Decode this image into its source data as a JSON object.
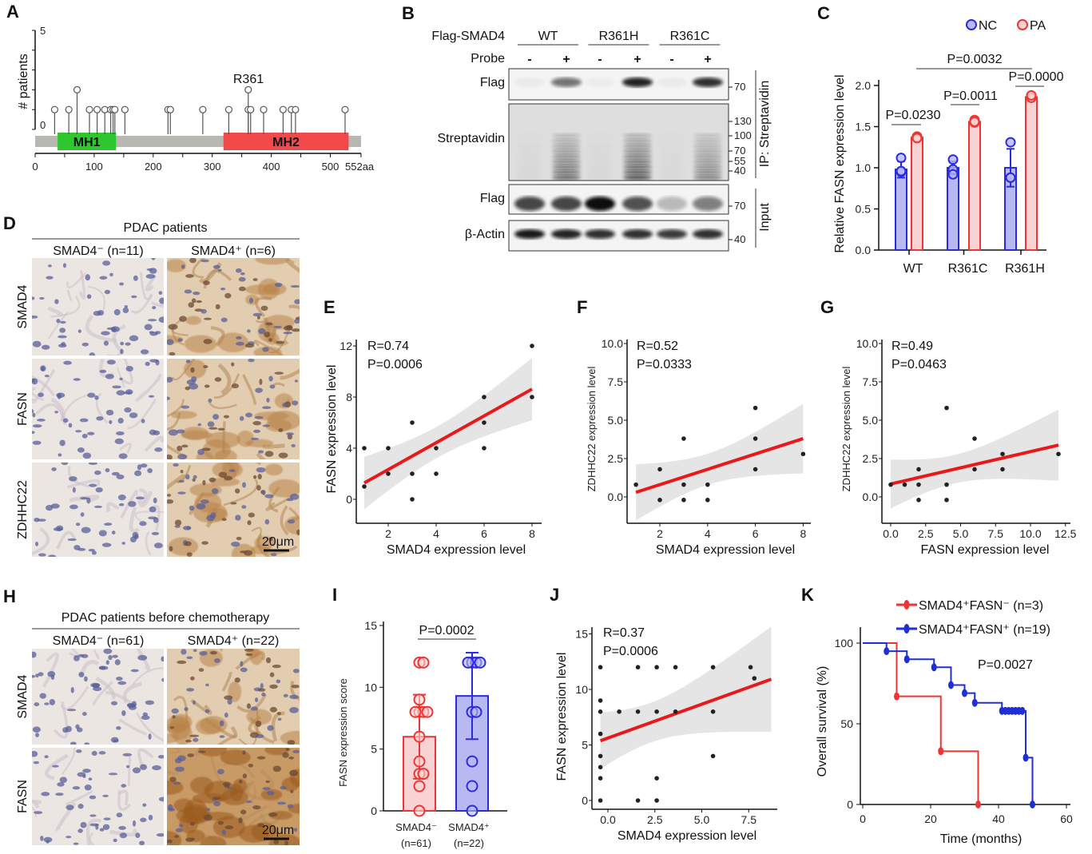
{
  "panel_labels": [
    "A",
    "B",
    "C",
    "D",
    "E",
    "F",
    "G",
    "H",
    "I",
    "J",
    "K"
  ],
  "panel_b": {
    "construct_label": "Flag-SMAD4",
    "probe_label": "Probe",
    "groups": [
      "WT",
      "R361H",
      "R361C"
    ],
    "probe": [
      "-",
      "+",
      "-",
      "+",
      "-",
      "+"
    ],
    "blots": [
      {
        "label": "Flag",
        "markers": [
          "70"
        ],
        "intensity": [
          0.04,
          0.55,
          0.03,
          0.9,
          0.04,
          0.85
        ]
      },
      {
        "label": "Streptavidin",
        "markers": [
          "130",
          "100",
          "70",
          "55",
          "40"
        ],
        "intensity": [
          0.04,
          0.7,
          0.04,
          0.85,
          0.03,
          0.55
        ]
      },
      {
        "label": "Flag",
        "markers": [
          "70"
        ],
        "intensity": [
          0.75,
          0.75,
          1.0,
          0.7,
          0.25,
          0.5
        ]
      },
      {
        "label": "β-Actin",
        "markers": [
          "40"
        ],
        "intensity": [
          0.95,
          0.9,
          0.85,
          0.85,
          0.8,
          0.85
        ]
      }
    ],
    "side_labels": [
      "IP: Streptavidin",
      "Input"
    ]
  },
  "panel_d": {
    "title": "PDAC patients",
    "columns": [
      "SMAD4⁻ (n=11)",
      "SMAD4⁺ (n=6)"
    ],
    "rows": [
      "SMAD4",
      "FASN",
      "ZDHHC22"
    ],
    "scale_bar": "20μm"
  },
  "panel_h": {
    "title": "PDAC  patients before chemotherapy",
    "columns": [
      "SMAD4⁻ (n=61)",
      "SMAD4⁺ (n=22)"
    ],
    "rows": [
      "SMAD4",
      "FASN"
    ],
    "scale_bar": "20μm"
  },
  "chart_data": [
    {
      "panel": "A",
      "type": "lollipop",
      "ylabel": "# patients",
      "yticks": [
        "0",
        "5"
      ],
      "ylim": [
        0,
        5
      ],
      "xticks": [
        "0",
        "100",
        "200",
        "300",
        "400",
        "500",
        "552aa"
      ],
      "xlim": [
        0,
        552
      ],
      "domains": [
        {
          "name": "MH1",
          "start": 38,
          "end": 137,
          "color": "#2ec82e"
        },
        {
          "name": "MH2",
          "start": 319,
          "end": 531,
          "color": "#f24a4a"
        }
      ],
      "mutations": [
        [
          33,
          1
        ],
        [
          57,
          1
        ],
        [
          71,
          2
        ],
        [
          92,
          1
        ],
        [
          105,
          1
        ],
        [
          118,
          1
        ],
        [
          128,
          1
        ],
        [
          132,
          1
        ],
        [
          135,
          1
        ],
        [
          152,
          1
        ],
        [
          225,
          1
        ],
        [
          229,
          1
        ],
        [
          284,
          1
        ],
        [
          328,
          1
        ],
        [
          361,
          2
        ],
        [
          361,
          1
        ],
        [
          365,
          1
        ],
        [
          387,
          1
        ],
        [
          420,
          1
        ],
        [
          434,
          1
        ],
        [
          441,
          1
        ],
        [
          525,
          1
        ]
      ],
      "annotation": "R361"
    },
    {
      "panel": "C",
      "type": "bar",
      "ylabel": "Relative FASN expression level",
      "categories": [
        "WT",
        "R361C",
        "R361H"
      ],
      "yticks": [
        "0.0",
        "0.5",
        "1.0",
        "1.5",
        "2.0"
      ],
      "ylim": [
        0,
        2
      ],
      "series": [
        {
          "name": "NC",
          "color": "#2a2ae0",
          "fill": "#b9b9f2",
          "values": [
            0.98,
            1.0,
            1.0
          ],
          "sd": [
            0.1,
            0.08,
            0.23
          ],
          "points": [
            [
              1.12,
              0.95,
              0.96
            ],
            [
              1.1,
              0.98,
              0.92
            ],
            [
              1.31,
              0.88,
              0.88
            ]
          ]
        },
        {
          "name": "PA",
          "color": "#ee3535",
          "fill": "#f9d3d3",
          "values": [
            1.37,
            1.56,
            1.86
          ],
          "sd": [
            0.02,
            0.03,
            0.02
          ],
          "points": [
            [
              1.38,
              1.37,
              1.36
            ],
            [
              1.58,
              1.55,
              1.56
            ],
            [
              1.87,
              1.85,
              1.88
            ]
          ]
        }
      ],
      "comparisons": [
        {
          "text": "P=0.0230",
          "from": [
            0,
            "NC"
          ],
          "to": [
            0,
            "PA"
          ]
        },
        {
          "text": "P=0.0011",
          "from": [
            1,
            "NC"
          ],
          "to": [
            1,
            "PA"
          ]
        },
        {
          "text": "P=0.0000",
          "from": [
            2,
            "NC"
          ],
          "to": [
            2,
            "PA"
          ]
        },
        {
          "text": "P=0.0032",
          "from": [
            0,
            "PA"
          ],
          "to": [
            2,
            "PA"
          ]
        }
      ]
    },
    {
      "panel": "E",
      "type": "scatter",
      "xlabel": "SMAD4 expression level",
      "ylabel": "FASN expression level",
      "xticks": [
        2,
        4,
        6,
        8
      ],
      "yticks": [
        0,
        4,
        8,
        12
      ],
      "points": [
        [
          1,
          4
        ],
        [
          1,
          1
        ],
        [
          2,
          4
        ],
        [
          2,
          2
        ],
        [
          3,
          6
        ],
        [
          3,
          2
        ],
        [
          3,
          0
        ],
        [
          4,
          4
        ],
        [
          4,
          2
        ],
        [
          6,
          8
        ],
        [
          6,
          6
        ],
        [
          6,
          4
        ],
        [
          8,
          12
        ],
        [
          8,
          8
        ]
      ],
      "annotations": [
        "R=0.74",
        "P=0.0006"
      ],
      "line_color": "#e8191a"
    },
    {
      "panel": "F",
      "type": "scatter",
      "xlabel": "SMAD4 expression level",
      "ylabel": "ZDHHC22 expression level",
      "xticks": [
        2,
        4,
        6,
        8
      ],
      "yticks": [
        "0.0",
        "2.5",
        "5.0",
        "7.5",
        "10.0"
      ],
      "points": [
        [
          1,
          0.8
        ],
        [
          2,
          1.8
        ],
        [
          2,
          -0.2
        ],
        [
          3,
          3.8
        ],
        [
          3,
          0.8
        ],
        [
          3,
          -0.2
        ],
        [
          4,
          0.8
        ],
        [
          4,
          -0.2
        ],
        [
          6,
          5.8
        ],
        [
          6,
          3.8
        ],
        [
          6,
          1.8
        ],
        [
          8,
          2.8
        ]
      ],
      "annotations": [
        "R=0.52",
        "P=0.0333"
      ],
      "line_color": "#e8191a"
    },
    {
      "panel": "G",
      "type": "scatter",
      "xlabel": "FASN expression level",
      "ylabel": "ZDHHC22 expression level",
      "xticks": [
        "0.0",
        "2.5",
        "5.0",
        "7.5",
        "10.0",
        "12.5"
      ],
      "yticks": [
        "0.0",
        "2.5",
        "5.0",
        "7.5",
        "10.0"
      ],
      "points": [
        [
          0,
          0.8
        ],
        [
          1,
          0.8
        ],
        [
          2,
          1.8
        ],
        [
          2,
          0.8
        ],
        [
          2,
          -0.2
        ],
        [
          4,
          5.8
        ],
        [
          4,
          0.8
        ],
        [
          4,
          -0.2
        ],
        [
          6,
          3.8
        ],
        [
          6,
          1.8
        ],
        [
          8,
          2.8
        ],
        [
          8,
          1.8
        ],
        [
          12,
          2.8
        ]
      ],
      "annotations": [
        "R=0.49",
        "P=0.0463"
      ],
      "line_color": "#e8191a"
    },
    {
      "panel": "I",
      "type": "bar",
      "ylabel": "FASN expression score",
      "categories": [
        "SMAD4⁻",
        "SMAD4⁺"
      ],
      "category_n": [
        "(n=61)",
        "(n=22)"
      ],
      "yticks": [
        "0",
        "5",
        "10",
        "15"
      ],
      "ylim": [
        0,
        15
      ],
      "values": [
        6.0,
        9.3
      ],
      "sd": [
        3.4,
        3.5
      ],
      "colors": [
        "#ee3535",
        "#2a2ae0"
      ],
      "fills": [
        "#f9d3d3",
        "#b9b9f2"
      ],
      "points": [
        [
          12,
          12,
          9,
          8,
          8,
          8,
          8,
          6,
          4,
          3,
          3,
          2,
          0
        ],
        [
          12,
          12,
          12,
          12,
          8,
          8,
          4,
          2,
          0
        ]
      ],
      "comparison": "P=0.0002"
    },
    {
      "panel": "J",
      "type": "scatter",
      "xlabel": "SMAD4 expression level",
      "ylabel": "FASN expression level",
      "xticks": [
        "0.0",
        "2.5",
        "5.0",
        "7.5"
      ],
      "yticks": [
        0,
        5,
        10,
        15
      ],
      "points": [
        [
          -0.4,
          12
        ],
        [
          -0.4,
          9
        ],
        [
          -0.4,
          8
        ],
        [
          -0.4,
          6
        ],
        [
          -0.4,
          4
        ],
        [
          -0.4,
          3
        ],
        [
          -0.4,
          2
        ],
        [
          -0.4,
          0
        ],
        [
          0.6,
          8
        ],
        [
          1.6,
          12
        ],
        [
          1.6,
          8
        ],
        [
          1.6,
          0
        ],
        [
          2.6,
          12
        ],
        [
          2.6,
          8
        ],
        [
          2.6,
          2
        ],
        [
          2.6,
          0
        ],
        [
          3.6,
          12
        ],
        [
          3.6,
          8
        ],
        [
          5.6,
          12
        ],
        [
          5.6,
          8
        ],
        [
          5.6,
          4
        ],
        [
          7.6,
          12
        ],
        [
          7.8,
          11
        ]
      ],
      "annotations": [
        "R=0.37",
        "P=0.0006"
      ],
      "line_color": "#e8191a"
    },
    {
      "panel": "K",
      "type": "line",
      "xlabel": "Time (months)",
      "ylabel": "Overall survival (%)",
      "xticks": [
        0,
        20,
        40,
        60
      ],
      "yticks": [
        0,
        50,
        100
      ],
      "xlim": [
        0,
        60
      ],
      "ylim": [
        0,
        100
      ],
      "series": [
        {
          "name": "SMAD4⁺FASN⁻ (n=3)",
          "color": "#ee3535",
          "steps": [
            [
              0,
              100
            ],
            [
              10,
              67
            ],
            [
              23,
              33
            ],
            [
              34,
              0
            ]
          ],
          "marks": [
            [
              10,
              67
            ],
            [
              23,
              33
            ],
            [
              34,
              0
            ]
          ]
        },
        {
          "name": "SMAD4⁺FASN⁺ (n=19)",
          "color": "#1f2fd8",
          "steps": [
            [
              0,
              100
            ],
            [
              7,
              95
            ],
            [
              13,
              90
            ],
            [
              21,
              85
            ],
            [
              26,
              74
            ],
            [
              30,
              69
            ],
            [
              33,
              63
            ],
            [
              41,
              58
            ],
            [
              48,
              29
            ],
            [
              50,
              0
            ]
          ],
          "marks": [
            [
              7,
              95
            ],
            [
              13,
              90
            ],
            [
              21,
              85
            ],
            [
              26,
              74
            ],
            [
              30,
              69
            ],
            [
              33,
              63
            ],
            [
              41,
              58
            ],
            [
              42,
              58
            ],
            [
              43,
              58
            ],
            [
              44,
              58
            ],
            [
              45,
              58
            ],
            [
              46,
              58
            ],
            [
              47,
              58
            ],
            [
              48,
              29
            ],
            [
              50,
              0
            ]
          ]
        }
      ],
      "annotation": "P=0.0027"
    }
  ]
}
